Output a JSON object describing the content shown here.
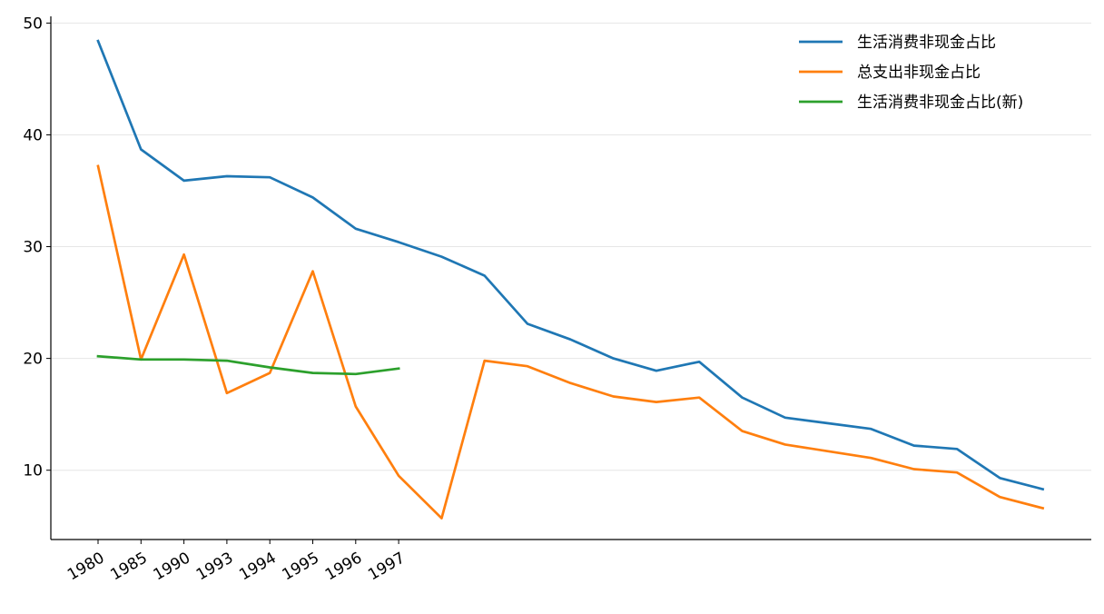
{
  "chart_data": {
    "type": "line",
    "title": "",
    "xlabel": "",
    "ylabel": "",
    "x_tick_labels": [
      "1980",
      "1985",
      "1990",
      "1993",
      "1994",
      "1995",
      "1996",
      "1997"
    ],
    "y_ticks": [
      10,
      20,
      30,
      40,
      50
    ],
    "ylim": [
      3.8,
      50.6
    ],
    "grid": "horizontal",
    "legend_position": "top-right",
    "series": [
      {
        "name": "生活消费非现金占比",
        "color": "#1f77b4",
        "values": [
          48.4,
          38.7,
          35.9,
          36.3,
          36.2,
          34.4,
          31.6,
          30.4,
          29.1,
          27.4,
          23.1,
          21.7,
          20.0,
          18.9,
          19.7,
          16.5,
          14.7,
          14.2,
          13.7,
          12.2,
          11.9,
          9.3,
          8.3
        ]
      },
      {
        "name": "总支出非现金占比",
        "color": "#ff7f0e",
        "values": [
          37.2,
          19.9,
          29.3,
          16.9,
          18.7,
          27.8,
          15.7,
          9.5,
          5.7,
          19.8,
          19.3,
          17.8,
          16.6,
          16.1,
          16.5,
          13.5,
          12.3,
          11.7,
          11.1,
          10.1,
          9.8,
          7.6,
          6.6
        ]
      },
      {
        "name": "生活消费非现金占比(新)",
        "color": "#2ca02c",
        "values": [
          20.2,
          19.9,
          19.9,
          19.8,
          19.2,
          18.7,
          18.6,
          19.1
        ]
      }
    ]
  }
}
